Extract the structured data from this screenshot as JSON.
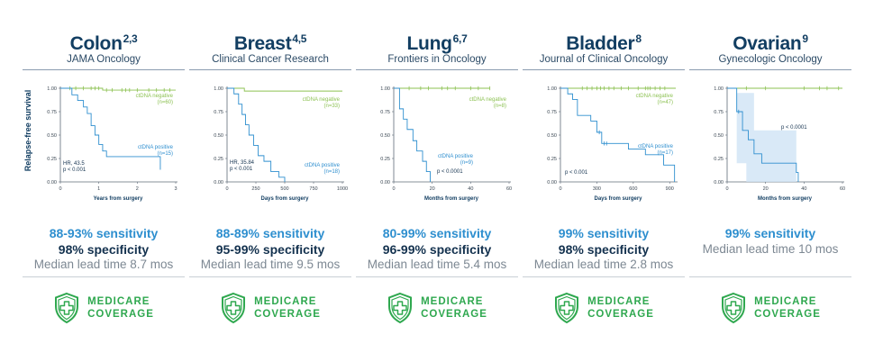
{
  "y_axis_label": "Relapse-free survival",
  "medicare": {
    "line1": "MEDICARE",
    "line2": "COVERAGE"
  },
  "colors": {
    "negative": "#8cc152",
    "positive": "#2f8fcf",
    "title": "#123e62",
    "medicare": "#2fa84f"
  },
  "panels": [
    {
      "title": "Colon",
      "refs": "2,3",
      "journal": "JAMA Oncology",
      "sensitivity": "88-93% sensitivity",
      "specificity": "98% specificity",
      "lead_time": "Median lead time 8.7 mos",
      "chart_data": {
        "type": "line",
        "xlabel": "Years from surgery",
        "xlim": [
          0,
          3
        ],
        "xticks": [
          "0",
          "1",
          "2",
          "3"
        ],
        "ylim": [
          0,
          1
        ],
        "yticks": [
          "0.00",
          "0.25",
          "0.50",
          "0.75",
          "1.00"
        ],
        "annotations": [
          "HR, 43.5",
          "p < 0.001"
        ],
        "series": [
          {
            "name": "ctDNA negative",
            "n": "(n=60)",
            "x": [
              0,
              1.1,
              3
            ],
            "y": [
              1.0,
              0.98,
              0.98
            ],
            "censor_x": [
              0.25,
              0.4,
              0.6,
              0.8,
              0.9,
              1.0,
              1.2,
              1.35,
              1.6,
              1.7,
              1.8,
              2.0,
              2.3,
              2.5,
              2.7,
              2.85
            ]
          },
          {
            "name": "ctDNA positive",
            "n": "(n=15)",
            "x": [
              0,
              0.3,
              0.45,
              0.6,
              0.7,
              0.8,
              0.9,
              1.0,
              1.1,
              1.2,
              2.6
            ],
            "y": [
              1.0,
              0.93,
              0.87,
              0.8,
              0.73,
              0.6,
              0.5,
              0.4,
              0.33,
              0.27,
              0.13
            ],
            "censor_x": []
          }
        ]
      }
    },
    {
      "title": "Breast",
      "refs": "4,5",
      "journal": "Clinical Cancer Research",
      "sensitivity": "88-89% sensitivity",
      "specificity": "95-99% specificity",
      "lead_time": "Median lead time 9.5 mos",
      "chart_data": {
        "type": "line",
        "xlabel": "Days from surgery",
        "xlim": [
          0,
          1000
        ],
        "xticks": [
          "0",
          "250",
          "500",
          "750",
          "1000"
        ],
        "ylim": [
          0,
          1
        ],
        "yticks": [
          "0.00",
          "0.25",
          "0.50",
          "0.75",
          "1.00"
        ],
        "annotations": [
          "HR, 35.84",
          "p < 0.001"
        ],
        "series": [
          {
            "name": "ctDNA negative",
            "n": "(n=33)",
            "x": [
              0,
              150,
              1000
            ],
            "y": [
              1.0,
              0.97,
              0.97
            ],
            "censor_x": []
          },
          {
            "name": "ctDNA positive",
            "n": "(n=18)",
            "x": [
              0,
              60,
              100,
              130,
              160,
              190,
              230,
              270,
              320,
              380,
              450,
              500
            ],
            "y": [
              1.0,
              0.94,
              0.83,
              0.72,
              0.61,
              0.5,
              0.39,
              0.28,
              0.22,
              0.11,
              0.05,
              0.0
            ],
            "censor_x": []
          }
        ]
      }
    },
    {
      "title": "Lung",
      "refs": "6,7",
      "journal": "Frontiers in Oncology",
      "sensitivity": "80-99% sensitivity",
      "specificity": "96-99% specificity",
      "lead_time": "Median lead time 5.4 mos",
      "chart_data": {
        "type": "line",
        "xlabel": "Months from surgery",
        "xlim": [
          0,
          60
        ],
        "xticks": [
          "0",
          "20",
          "40",
          "60"
        ],
        "ylim": [
          0,
          1
        ],
        "yticks": [
          "0.00",
          "0.25",
          "0.50",
          "0.75",
          "1.00"
        ],
        "annotations": [
          "p < 0.0001"
        ],
        "series": [
          {
            "name": "ctDNA negative",
            "n": "(n=8)",
            "x": [
              0,
              50
            ],
            "y": [
              1.0,
              1.0
            ],
            "censor_x": [
              8,
              14,
              18,
              25,
              28,
              32,
              40,
              44,
              50
            ]
          },
          {
            "name": "ctDNA positive",
            "n": "(n=9)",
            "x": [
              0,
              3,
              5,
              7,
              10,
              12,
              15,
              17,
              19
            ],
            "y": [
              1.0,
              0.78,
              0.67,
              0.56,
              0.44,
              0.33,
              0.22,
              0.11,
              0.0
            ],
            "censor_x": []
          }
        ]
      }
    },
    {
      "title": "Bladder",
      "refs": "8",
      "journal": "Journal of Clinical Oncology",
      "sensitivity": "99% sensitivity",
      "specificity": "98% specificity",
      "lead_time": "Median lead time 2.8 mos",
      "chart_data": {
        "type": "line",
        "xlabel": "Days from surgery",
        "xlim": [
          0,
          950
        ],
        "xticks": [
          "0",
          "300",
          "600",
          "900"
        ],
        "ylim": [
          0,
          1
        ],
        "yticks": [
          "0.00",
          "0.25",
          "0.50",
          "0.75",
          "1.00"
        ],
        "annotations": [
          "p < 0.001"
        ],
        "series": [
          {
            "name": "ctDNA negative",
            "n": "(n=47)",
            "x": [
              0,
              950
            ],
            "y": [
              1.0,
              1.0
            ],
            "censor_x": [
              180,
              220,
              260,
              300,
              330,
              360,
              400,
              440,
              500,
              560,
              640,
              700,
              720,
              740,
              780,
              820,
              860
            ]
          },
          {
            "name": "ctDNA positive",
            "n": "(n=17)",
            "x": [
              0,
              60,
              100,
              140,
              250,
              300,
              340,
              400,
              560,
              700,
              850,
              940
            ],
            "y": [
              1.0,
              0.94,
              0.88,
              0.71,
              0.65,
              0.53,
              0.41,
              0.41,
              0.35,
              0.29,
              0.18,
              0.0
            ],
            "censor_x": [
              320,
              360,
              380
            ]
          }
        ]
      }
    },
    {
      "title": "Ovarian",
      "refs": "9",
      "journal": "Gynecologic Oncology",
      "sensitivity": "99% sensitivity",
      "specificity": "",
      "lead_time": "Median lead time 10 mos",
      "chart_data": {
        "type": "line",
        "xlabel": "Months from surgery",
        "xlim": [
          0,
          60
        ],
        "xticks": [
          "0",
          "20",
          "40",
          "60"
        ],
        "ylim": [
          0,
          1
        ],
        "yticks": [
          "0.00",
          "0.25",
          "0.50",
          "0.75",
          "1.00"
        ],
        "annotations": [
          "p < 0.0001"
        ],
        "series": [
          {
            "name": "",
            "n": "",
            "x": [
              0,
              60
            ],
            "y": [
              1.0,
              1.0
            ],
            "censor_x": [
              10,
              20,
              40,
              48,
              52,
              58
            ]
          },
          {
            "name": "",
            "n": "",
            "x": [
              0,
              5,
              8,
              11,
              14,
              18,
              36,
              37
            ],
            "y": [
              1.0,
              0.75,
              0.55,
              0.45,
              0.3,
              0.2,
              0.1,
              0.0
            ],
            "censor_x": [
              6
            ]
          }
        ]
      }
    }
  ]
}
